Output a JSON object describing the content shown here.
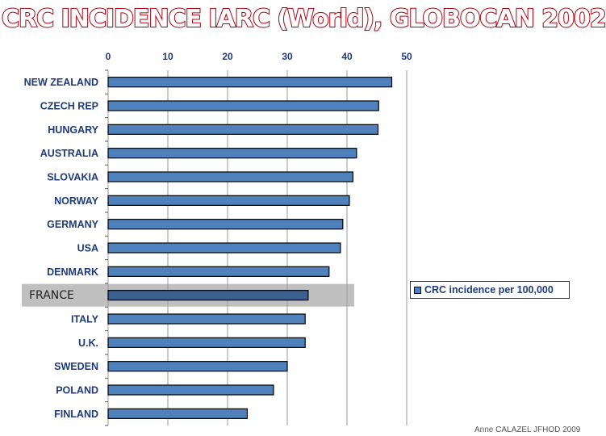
{
  "title": "CRC INCIDENCE IARC (World), GLOBOCAN 2002",
  "credit": "Anne CALAZEL JFHOD 2009",
  "highlight": {
    "label": "FRANCE",
    "band_color": "#c0c0c0"
  },
  "colors": {
    "bar": "#4f81bd",
    "bar_outline": "#000000",
    "label": "#1f3a7a",
    "title_stroke": "#b00010"
  },
  "chart_data": {
    "type": "bar",
    "orientation": "horizontal",
    "title": "CRC INCIDENCE IARC (World), GLOBOCAN 2002",
    "xlabel": "",
    "ylabel": "",
    "xlim": [
      0,
      50
    ],
    "xticks": [
      0,
      10,
      20,
      30,
      40,
      50
    ],
    "grid": true,
    "legend_position": "right",
    "categories": [
      "NEW ZEALAND",
      "CZECH REP",
      "HUNGARY",
      "AUSTRALIA",
      "SLOVAKIA",
      "NORWAY",
      "GERMANY",
      "USA",
      "DENMARK",
      "FRANCE",
      "ITALY",
      "U.K.",
      "SWEDEN",
      "POLAND",
      "FINLAND"
    ],
    "series": [
      {
        "name": "CRC incidence per 100,000",
        "values": [
          47.5,
          45.3,
          45.2,
          41.6,
          41.0,
          40.4,
          39.3,
          38.9,
          37.0,
          33.5,
          33.0,
          33.0,
          30.0,
          27.7,
          23.3
        ]
      }
    ],
    "highlighted_category": "FRANCE"
  }
}
